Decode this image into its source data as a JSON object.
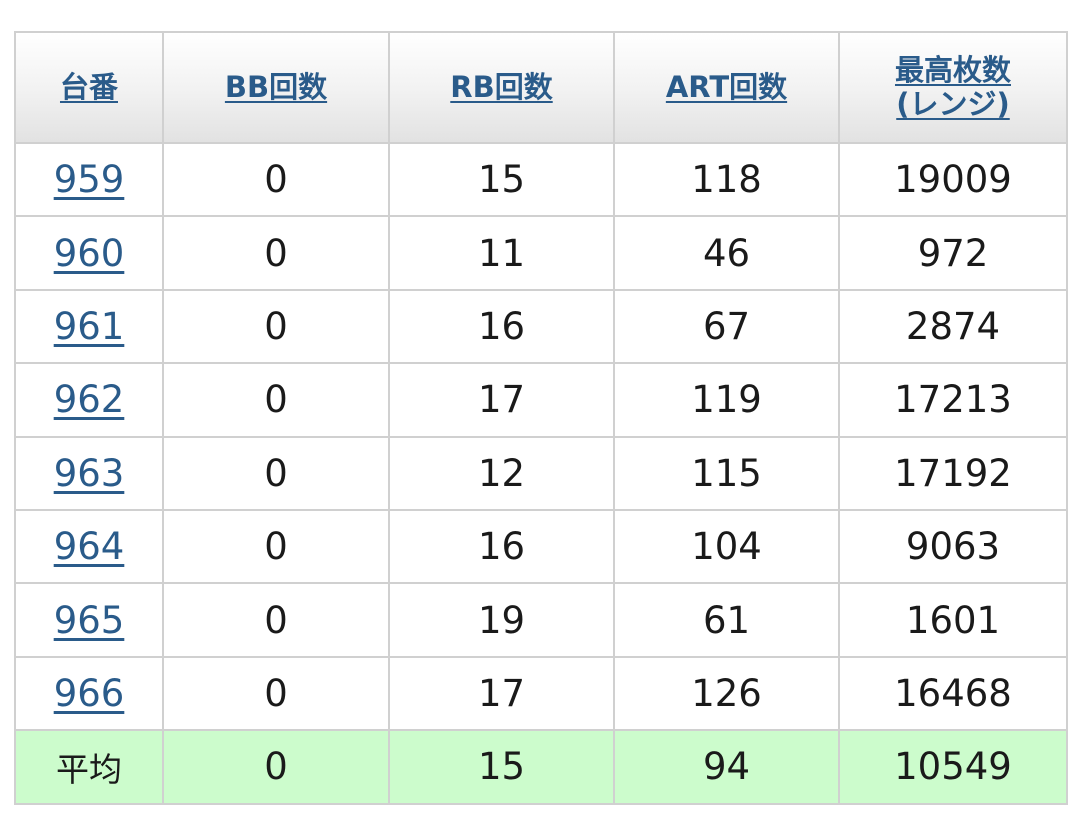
{
  "table": {
    "headers": [
      {
        "label": "台番"
      },
      {
        "label": "BB回数"
      },
      {
        "label": "RB回数"
      },
      {
        "label": "ART回数"
      },
      {
        "label": "最高枚数",
        "label2": "(レンジ)"
      }
    ],
    "rows": [
      [
        "959",
        "0",
        "15",
        "118",
        "19009"
      ],
      [
        "960",
        "0",
        "11",
        "46",
        "972"
      ],
      [
        "961",
        "0",
        "16",
        "67",
        "2874"
      ],
      [
        "962",
        "0",
        "17",
        "119",
        "17213"
      ],
      [
        "963",
        "0",
        "12",
        "115",
        "17192"
      ],
      [
        "964",
        "0",
        "16",
        "104",
        "9063"
      ],
      [
        "965",
        "0",
        "19",
        "61",
        "1601"
      ],
      [
        "966",
        "0",
        "17",
        "126",
        "16468"
      ]
    ],
    "average": {
      "label": "平均",
      "values": [
        "0",
        "15",
        "94",
        "10549"
      ]
    }
  },
  "colors": {
    "link": "#2a5b8a",
    "average_row_bg": "#ccfccc",
    "border": "#d0d0d0"
  }
}
